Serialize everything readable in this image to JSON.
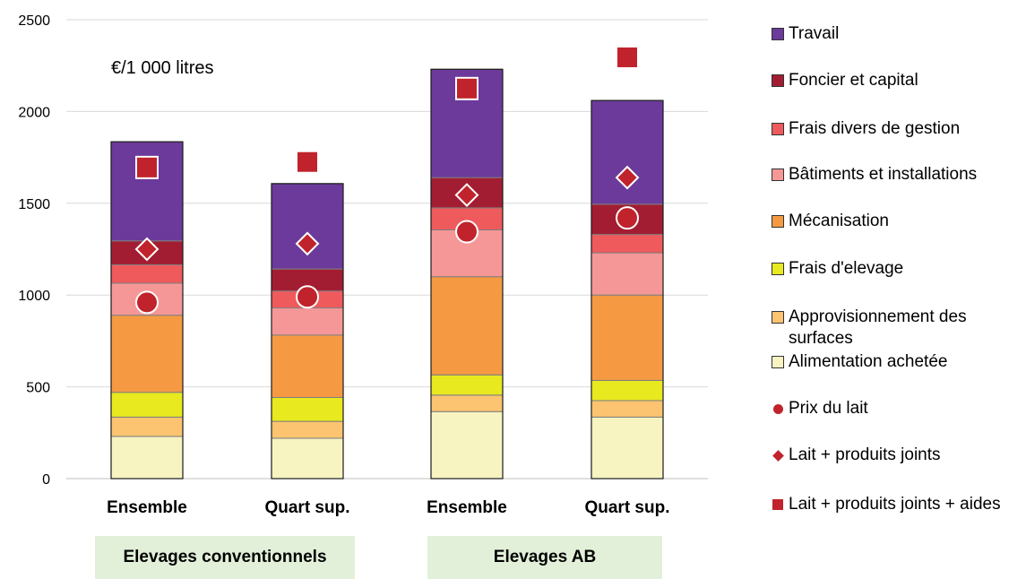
{
  "chart_data": {
    "type": "bar",
    "stacked": true,
    "unit_label": "€/1 000 litres",
    "ylim": [
      0,
      2500
    ],
    "yticks": [
      0,
      500,
      1000,
      1500,
      2000,
      2500
    ],
    "grid": true,
    "legend_position": "right",
    "categories": [
      "Ensemble",
      "Quart sup.",
      "Ensemble",
      "Quart sup."
    ],
    "groups": [
      {
        "label": "Elevages conventionnels",
        "categories": [
          0,
          1
        ]
      },
      {
        "label": "Elevages AB",
        "categories": [
          2,
          3
        ]
      }
    ],
    "series": [
      {
        "name": "Alimentation achetée",
        "color": "#f7f4c2",
        "values": [
          230,
          220,
          365,
          335
        ]
      },
      {
        "name": "Approvisionnement des surfaces",
        "color": "#fcc470",
        "values": [
          105,
          92,
          90,
          90
        ]
      },
      {
        "name": "Frais d'elevage",
        "color": "#e8e91f",
        "values": [
          135,
          130,
          110,
          110
        ]
      },
      {
        "name": "Mécanisation",
        "color": "#f59a43",
        "values": [
          420,
          340,
          535,
          465
        ]
      },
      {
        "name": "Bâtiments et installations",
        "color": "#f69797",
        "values": [
          175,
          148,
          255,
          230
        ]
      },
      {
        "name": "Frais divers de gestion",
        "color": "#ef5a5c",
        "values": [
          100,
          92,
          120,
          100
        ]
      },
      {
        "name": "Foncier et capital",
        "color": "#a31d32",
        "values": [
          130,
          120,
          165,
          165
        ]
      },
      {
        "name": "Travail",
        "color": "#6b3a9b",
        "values": [
          540,
          465,
          590,
          565
        ]
      }
    ],
    "markers": [
      {
        "name": "Prix du lait",
        "shape": "circle",
        "color": "#c0232b",
        "values": [
          960,
          990,
          1345,
          1420
        ]
      },
      {
        "name": "Lait + produits joints",
        "shape": "diamond",
        "color": "#c0232b",
        "values": [
          1250,
          1280,
          1545,
          1640
        ]
      },
      {
        "name": "Lait + produits joints + aides",
        "shape": "square",
        "color": "#c0232b",
        "values": [
          1695,
          1725,
          2125,
          2295
        ]
      }
    ]
  },
  "legend": [
    {
      "label": "Travail",
      "kind": "box",
      "color": "#6b3a9b"
    },
    {
      "label": "Foncier et capital",
      "kind": "box",
      "color": "#a31d32"
    },
    {
      "label": "Frais divers de gestion",
      "kind": "box",
      "color": "#ef5a5c"
    },
    {
      "label": "Bâtiments et installations",
      "kind": "box",
      "color": "#f69797"
    },
    {
      "label": "Mécanisation",
      "kind": "box",
      "color": "#f59a43"
    },
    {
      "label": "Frais d'elevage",
      "kind": "box",
      "color": "#e8e91f"
    },
    {
      "label": "Approvisionnement des surfaces",
      "kind": "box",
      "color": "#fcc470"
    },
    {
      "label": "Alimentation achetée",
      "kind": "box",
      "color": "#f7f4c2"
    },
    {
      "label": "Prix du lait",
      "kind": "dot",
      "color": "#c0232b"
    },
    {
      "label": "Lait + produits joints",
      "kind": "diamond",
      "color": "#c0232b"
    },
    {
      "label": "Lait + produits joints + aides",
      "kind": "square",
      "color": "#c0232b"
    }
  ]
}
